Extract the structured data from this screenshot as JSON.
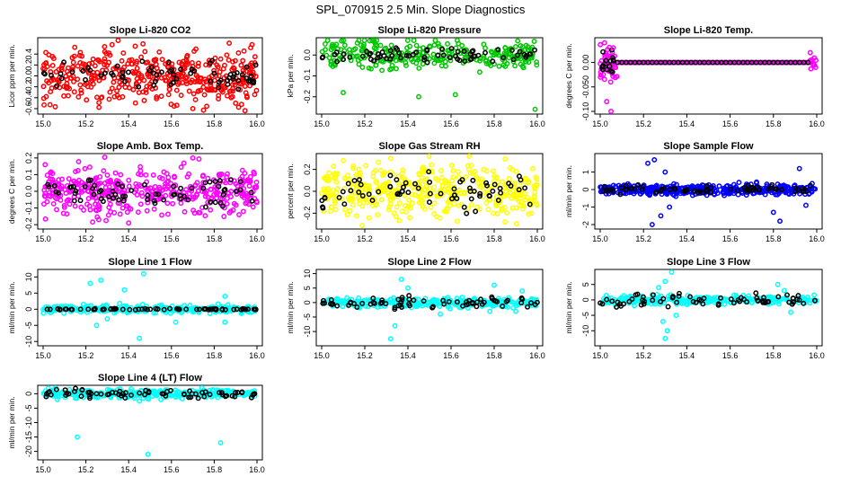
{
  "figure_title": "SPL_070915  2.5 Min. Slope Diagnostics",
  "colors": {
    "black": "#000000",
    "red": "#ff0000",
    "green": "#00c800",
    "magenta": "#ff00ff",
    "yellow": "#ffff00",
    "blue": "#0000ff",
    "cyan": "#00ffff"
  },
  "chart_data": [
    {
      "type": "scatter",
      "title": "Slope Li-820 CO2",
      "ylabel": "Licor ppm per min.",
      "xlim": [
        15.0,
        16.0
      ],
      "xticks": [
        "15.0",
        "15.2",
        "15.4",
        "15.6",
        "15.8",
        "16.0"
      ],
      "ylim": [
        -0.65,
        0.65
      ],
      "yticks": [
        -0.6,
        -0.4,
        -0.2,
        0.0,
        0.2,
        0.4
      ],
      "yticklabels": [
        "-0.6",
        "-0.4",
        "-0.2",
        "0.0",
        "0.2",
        "0.4"
      ],
      "color": "red",
      "spread": 0.25,
      "black_spread": 0.12,
      "outliers": [
        [
          15.7,
          -0.6
        ],
        [
          15.87,
          0.6
        ],
        [
          15.9,
          -0.5
        ]
      ],
      "density": 3
    },
    {
      "type": "scatter",
      "title": "Slope Li-820 Pressure",
      "ylabel": "kPa per min.",
      "xlim": [
        15.0,
        16.0
      ],
      "xticks": [
        "15.0",
        "15.2",
        "15.4",
        "15.6",
        "15.8",
        "16.0"
      ],
      "ylim": [
        -0.27,
        0.07
      ],
      "yticks": [
        -0.2,
        -0.1,
        0.0
      ],
      "yticklabels": [
        "-0.2",
        "-0.1",
        "0.0"
      ],
      "color": "green",
      "spread": 0.035,
      "black_spread": 0.015,
      "outliers": [
        [
          15.45,
          -0.2
        ],
        [
          15.1,
          -0.18
        ],
        [
          15.25,
          0.05
        ],
        [
          15.62,
          -0.19
        ],
        [
          15.99,
          -0.26
        ],
        [
          15.9,
          0.04
        ]
      ],
      "density": 2
    },
    {
      "type": "scatter",
      "title": "Slope Li-820 Temp.",
      "ylabel": "degrees C per min.",
      "xlim": [
        15.0,
        16.0
      ],
      "xticks": [
        "15.0",
        "15.2",
        "15.4",
        "15.6",
        "15.8",
        "16.0"
      ],
      "ylim": [
        -0.1,
        0.045
      ],
      "yticks": [
        -0.1,
        -0.05,
        0.0
      ],
      "yticklabels": [
        "-0.10",
        "-0.050",
        "0.00"
      ],
      "color": "magenta",
      "spread": 0.0,
      "black_spread": 0.0,
      "outliers": [
        [
          15.02,
          0.04
        ],
        [
          15.03,
          -0.08
        ],
        [
          15.05,
          -0.1
        ],
        [
          15.06,
          0.03
        ],
        [
          15.97,
          0.02
        ]
      ],
      "density": 2
    },
    {
      "type": "scatter",
      "title": "Slope Amb. Box Temp.",
      "ylabel": "degrees C per min.",
      "xlim": [
        15.0,
        16.0
      ],
      "xticks": [
        "15.0",
        "15.2",
        "15.4",
        "15.6",
        "15.8",
        "16.0"
      ],
      "ylim": [
        -0.21,
        0.21
      ],
      "yticks": [
        -0.2,
        -0.1,
        0.0,
        0.1,
        0.2
      ],
      "yticklabels": [
        "-0.2",
        "-0.1",
        "0.0",
        "0.1",
        "0.2"
      ],
      "color": "magenta",
      "spread": 0.07,
      "black_spread": 0.04,
      "outliers": [
        [
          15.4,
          -0.19
        ],
        [
          15.7,
          0.2
        ]
      ],
      "density": 3
    },
    {
      "type": "scatter",
      "title": "Slope Gas Stream RH",
      "ylabel": "percent per min.",
      "xlim": [
        15.0,
        16.0
      ],
      "xticks": [
        "15.0",
        "15.2",
        "15.4",
        "15.6",
        "15.8",
        "16.0"
      ],
      "ylim": [
        -0.32,
        0.32
      ],
      "yticks": [
        -0.2,
        0.0,
        0.2
      ],
      "yticklabels": [
        "-0.2",
        "0.0",
        "0.2"
      ],
      "color": "yellow",
      "spread": 0.12,
      "black_spread": 0.08,
      "outliers": [
        [
          15.32,
          0.3
        ],
        [
          15.85,
          -0.28
        ],
        [
          15.1,
          0.28
        ]
      ],
      "density": 3
    },
    {
      "type": "scatter",
      "title": "Slope Sample Flow",
      "ylabel": "ml/min per min.",
      "xlim": [
        15.0,
        16.0
      ],
      "xticks": [
        "15.0",
        "15.2",
        "15.4",
        "15.6",
        "15.8",
        "16.0"
      ],
      "ylim": [
        -2.1,
        1.9
      ],
      "yticks": [
        -2,
        -1,
        0,
        1
      ],
      "yticklabels": [
        "-2",
        "-1",
        "0",
        "1"
      ],
      "color": "blue",
      "spread": 0.15,
      "black_spread": 0.12,
      "outliers": [
        [
          15.22,
          1.5
        ],
        [
          15.25,
          1.7
        ],
        [
          15.3,
          1.0
        ],
        [
          15.28,
          -1.5
        ],
        [
          15.32,
          -1.0
        ],
        [
          15.24,
          -2.0
        ],
        [
          15.8,
          -1.3
        ],
        [
          15.83,
          -1.8
        ],
        [
          15.92,
          1.2
        ],
        [
          15.95,
          -0.9
        ]
      ],
      "density": 3
    },
    {
      "type": "scatter",
      "title": "Slope Line 1 Flow",
      "ylabel": "ml/min per min.",
      "xlim": [
        15.0,
        16.0
      ],
      "xticks": [
        "15.0",
        "15.2",
        "15.4",
        "15.6",
        "15.8",
        "16.0"
      ],
      "ylim": [
        -10.5,
        11.5
      ],
      "yticks": [
        -10,
        -5,
        0,
        5,
        10
      ],
      "yticklabels": [
        "-10",
        "-5",
        "0",
        "5",
        "10"
      ],
      "color": "cyan",
      "spread": 0.6,
      "black_spread": 0.1,
      "outliers": [
        [
          15.22,
          8
        ],
        [
          15.27,
          9
        ],
        [
          15.38,
          6
        ],
        [
          15.25,
          -5
        ],
        [
          15.3,
          -3
        ],
        [
          15.47,
          11
        ],
        [
          15.45,
          -9
        ],
        [
          15.62,
          -4
        ],
        [
          15.85,
          4
        ],
        [
          15.85,
          -4
        ]
      ],
      "density": 2
    },
    {
      "type": "scatter",
      "title": "Slope Line 2 Flow",
      "ylabel": "ml/min per min.",
      "xlim": [
        15.0,
        16.0
      ],
      "xticks": [
        "15.0",
        "15.2",
        "15.4",
        "15.6",
        "15.8",
        "16.0"
      ],
      "ylim": [
        -14.0,
        10.5
      ],
      "yticks": [
        -10,
        -5,
        0,
        5,
        10
      ],
      "yticklabels": [
        "-10",
        "-5",
        "0",
        "5",
        "10"
      ],
      "color": "cyan",
      "spread": 0.8,
      "black_spread": 1.0,
      "outliers": [
        [
          15.32,
          -12.5
        ],
        [
          15.34,
          -8
        ],
        [
          15.37,
          8
        ],
        [
          15.4,
          5
        ],
        [
          15.55,
          -4
        ],
        [
          15.78,
          -3
        ],
        [
          15.8,
          6
        ],
        [
          15.93,
          4
        ],
        [
          15.9,
          -3
        ]
      ],
      "density": 2
    },
    {
      "type": "scatter",
      "title": "Slope Line 3 Flow",
      "ylabel": "ml/min per min.",
      "xlim": [
        15.0,
        16.0
      ],
      "xticks": [
        "15.0",
        "15.2",
        "15.4",
        "15.6",
        "15.8",
        "16.0"
      ],
      "ylim": [
        -14.0,
        9.0
      ],
      "yticks": [
        -10,
        -5,
        0,
        5
      ],
      "yticklabels": [
        "-10",
        "-5",
        "0",
        "5"
      ],
      "color": "cyan",
      "spread": 0.7,
      "black_spread": 1.0,
      "outliers": [
        [
          15.3,
          -12.5
        ],
        [
          15.31,
          -10
        ],
        [
          15.29,
          -7
        ],
        [
          15.3,
          6
        ],
        [
          15.33,
          9
        ],
        [
          15.27,
          4
        ],
        [
          15.35,
          -5
        ],
        [
          15.82,
          5
        ],
        [
          15.85,
          3
        ],
        [
          15.88,
          -4
        ]
      ],
      "density": 2
    },
    {
      "type": "scatter",
      "title": "Slope Line 4 (LT) Flow",
      "ylabel": "ml/min per min.",
      "xlim": [
        15.0,
        16.0
      ],
      "xticks": [
        "15.0",
        "15.2",
        "15.4",
        "15.6",
        "15.8",
        "16.0"
      ],
      "ylim": [
        -22.0,
        2.0
      ],
      "yticks": [
        -20,
        -15,
        -10,
        -5,
        0
      ],
      "yticklabels": [
        "-20",
        "-15",
        "-10",
        "-5",
        "0"
      ],
      "color": "cyan",
      "spread": 0.8,
      "black_spread": 0.8,
      "outliers": [
        [
          15.16,
          -15
        ],
        [
          15.49,
          -21
        ],
        [
          15.83,
          -17
        ],
        [
          15.45,
          -2.5
        ]
      ],
      "density": 2
    }
  ]
}
